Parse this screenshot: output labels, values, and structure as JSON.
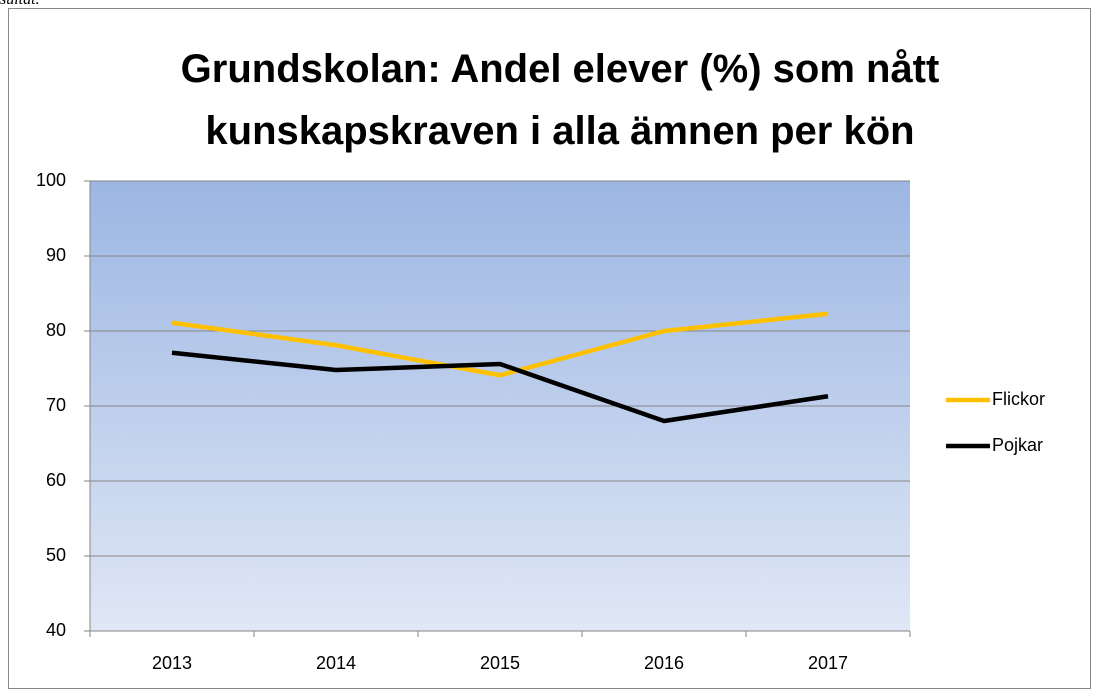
{
  "header_text": "sultat.",
  "chart_data": {
    "type": "line",
    "title": "Grundskolan: Andel elever (%) som nått kunskapskraven i alla ämnen per kön",
    "categories": [
      "2013",
      "2014",
      "2015",
      "2016",
      "2017"
    ],
    "series": [
      {
        "name": "Flickor",
        "color": "#ffc000",
        "values": [
          81.1,
          78.1,
          74.1,
          80.0,
          82.3
        ]
      },
      {
        "name": "Pojkar",
        "color": "#000000",
        "values": [
          77.1,
          74.8,
          75.6,
          68.0,
          71.3
        ]
      }
    ],
    "ylim": [
      40,
      100
    ],
    "yticks": [
      40,
      50,
      60,
      70,
      80,
      90,
      100
    ],
    "grid": true,
    "legend": "right"
  }
}
